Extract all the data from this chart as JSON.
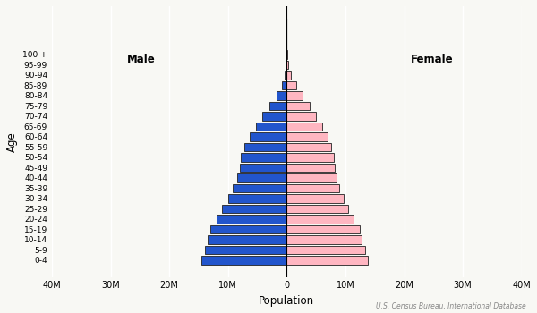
{
  "age_groups": [
    "0-4",
    "5-9",
    "10-14",
    "15-19",
    "20-24",
    "25-29",
    "30-34",
    "35-39",
    "40-44",
    "45-49",
    "50-54",
    "55-59",
    "60-64",
    "65-69",
    "70-74",
    "75-79",
    "80-84",
    "85-89",
    "90-94",
    "95-99",
    "100 +"
  ],
  "male": [
    14500000,
    14000000,
    13500000,
    13000000,
    12000000,
    11000000,
    10000000,
    9200000,
    8500000,
    8000000,
    7800000,
    7200000,
    6300000,
    5300000,
    4100000,
    2900000,
    1700000,
    850000,
    320000,
    90000,
    18000
  ],
  "female": [
    13800000,
    13300000,
    12800000,
    12400000,
    11400000,
    10500000,
    9700000,
    9000000,
    8500000,
    8200000,
    8000000,
    7600000,
    6900000,
    6000000,
    5000000,
    3900000,
    2700000,
    1600000,
    750000,
    250000,
    55000
  ],
  "male_color": "#2255CC",
  "female_color": "#FFB6C1",
  "male_edge_color": "#222222",
  "female_edge_color": "#222222",
  "bar_height": 0.85,
  "xlim": 40000000,
  "xtick_values": [
    -40000000,
    -30000000,
    -20000000,
    -10000000,
    0,
    10000000,
    20000000,
    30000000,
    40000000
  ],
  "xtick_labels": [
    "40M",
    "30M",
    "20M",
    "10M",
    "0",
    "10M",
    "20M",
    "30M",
    "40M"
  ],
  "xlabel": "Population",
  "ylabel": "Age",
  "male_label": "Male",
  "female_label": "Female",
  "source_text": "U.S. Census Bureau, International Database",
  "bg_color": "#F8F8F4",
  "spine_color": "#CCCCCC"
}
